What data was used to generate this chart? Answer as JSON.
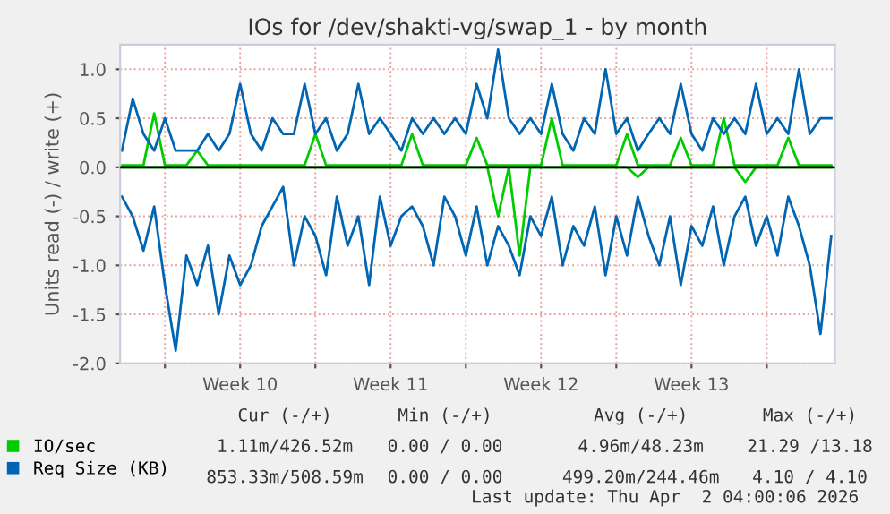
{
  "chart_data": {
    "type": "line",
    "title": "IOs for /dev/shakti-vg/swap_1 - by month",
    "ylabel": "Units read (-) / write (+)",
    "x": [
      "2026-02-28T00:00",
      "2026-02-28T12:00",
      "2026-03-01T00:00",
      "2026-03-01T12:00",
      "2026-03-02T00:00",
      "2026-03-02T12:00",
      "2026-03-03T00:00",
      "2026-03-03T12:00",
      "2026-03-04T00:00",
      "2026-03-04T12:00",
      "2026-03-05T00:00",
      "2026-03-05T12:00",
      "2026-03-06T00:00",
      "2026-03-06T12:00",
      "2026-03-07T00:00",
      "2026-03-07T12:00",
      "2026-03-08T00:00",
      "2026-03-08T12:00",
      "2026-03-09T00:00",
      "2026-03-09T12:00",
      "2026-03-10T00:00",
      "2026-03-10T12:00",
      "2026-03-11T00:00",
      "2026-03-11T12:00",
      "2026-03-12T00:00",
      "2026-03-12T12:00",
      "2026-03-13T00:00",
      "2026-03-13T12:00",
      "2026-03-14T00:00",
      "2026-03-14T12:00",
      "2026-03-15T00:00",
      "2026-03-15T12:00",
      "2026-03-16T00:00",
      "2026-03-16T12:00",
      "2026-03-17T00:00",
      "2026-03-17T12:00",
      "2026-03-18T00:00",
      "2026-03-18T12:00",
      "2026-03-19T00:00",
      "2026-03-19T12:00",
      "2026-03-20T00:00",
      "2026-03-20T12:00",
      "2026-03-21T00:00",
      "2026-03-21T12:00",
      "2026-03-22T00:00",
      "2026-03-22T12:00",
      "2026-03-23T00:00",
      "2026-03-23T12:00",
      "2026-03-24T00:00",
      "2026-03-24T12:00",
      "2026-03-25T00:00",
      "2026-03-25T12:00",
      "2026-03-26T00:00",
      "2026-03-26T12:00",
      "2026-03-27T00:00",
      "2026-03-27T12:00",
      "2026-03-28T00:00",
      "2026-03-28T12:00",
      "2026-03-29T00:00",
      "2026-03-29T12:00",
      "2026-03-30T00:00",
      "2026-03-30T12:00",
      "2026-03-31T00:00",
      "2026-03-31T12:00",
      "2026-04-01T00:00",
      "2026-04-01T12:00",
      "2026-04-02T00:00"
    ],
    "series": [
      {
        "name": "IO/sec",
        "color": "#00cc00",
        "values": [
          0.02,
          0.02,
          0.02,
          0.55,
          0.02,
          0.02,
          0.02,
          0.17,
          0.02,
          0.02,
          0.02,
          0.02,
          0.02,
          0.02,
          0.02,
          0.02,
          0.02,
          0.02,
          0.34,
          0.02,
          0.02,
          0.02,
          0.02,
          0.02,
          0.02,
          0.02,
          0.02,
          0.34,
          0.02,
          0.02,
          0.02,
          0.02,
          0.02,
          0.3,
          0.02,
          0.02,
          0.02,
          0.02,
          0.02,
          0.02,
          0.5,
          0.02,
          0.02,
          0.02,
          0.02,
          0.02,
          0.02,
          0.34,
          0.02,
          0.02,
          0.02,
          0.02,
          0.3,
          0.02,
          0.02,
          0.02,
          0.5,
          0.02,
          0.02,
          0.02,
          0.02,
          0.02,
          0.3,
          0.02,
          0.02,
          0.02,
          0.02
        ]
      },
      {
        "color": "#00cc00",
        "values": [
          0,
          0,
          0,
          0,
          0,
          0,
          0,
          0,
          0,
          0,
          0,
          0,
          0,
          0,
          0,
          0,
          0,
          0,
          0,
          0,
          0,
          0,
          0,
          0,
          0,
          0,
          0,
          0,
          0,
          0,
          0,
          0,
          0,
          0,
          0,
          -0.5,
          0,
          -0.9,
          0,
          0,
          0,
          0,
          0,
          0,
          0,
          0,
          0,
          0,
          -0.1,
          0,
          0,
          0,
          0,
          0,
          0,
          0,
          0,
          0,
          -0.15,
          0,
          0,
          0,
          0,
          0,
          0,
          0,
          0
        ]
      },
      {
        "name": "Req Size (KB)",
        "color": "#0066b3",
        "values": [
          0.17,
          0.7,
          0.34,
          0.17,
          0.5,
          0.17,
          0.17,
          0.17,
          0.34,
          0.17,
          0.34,
          0.85,
          0.34,
          0.17,
          0.5,
          0.34,
          0.34,
          0.85,
          0.34,
          0.5,
          0.17,
          0.34,
          0.85,
          0.34,
          0.5,
          0.34,
          0.17,
          0.5,
          0.34,
          0.5,
          0.34,
          0.5,
          0.34,
          0.85,
          0.5,
          1.2,
          0.5,
          0.34,
          0.5,
          0.34,
          0.85,
          0.34,
          0.17,
          0.5,
          0.34,
          1.0,
          0.34,
          0.5,
          0.17,
          0.34,
          0.5,
          0.34,
          0.85,
          0.34,
          0.17,
          0.5,
          0.34,
          0.5,
          0.34,
          0.85,
          0.34,
          0.5,
          0.34,
          1.0,
          0.34,
          0.5,
          0.5
        ]
      },
      {
        "color": "#0066b3",
        "values": [
          -0.3,
          -0.5,
          -0.85,
          -0.4,
          -1.2,
          -1.87,
          -0.9,
          -1.2,
          -0.8,
          -1.5,
          -0.9,
          -1.2,
          -1.0,
          -0.6,
          -0.4,
          -0.2,
          -1.0,
          -0.5,
          -0.7,
          -1.1,
          -0.3,
          -0.8,
          -0.5,
          -1.2,
          -0.3,
          -0.8,
          -0.5,
          -0.4,
          -0.6,
          -1.0,
          -0.3,
          -0.5,
          -0.9,
          -0.4,
          -1.0,
          -0.6,
          -0.8,
          -1.1,
          -0.5,
          -0.7,
          -0.3,
          -1.0,
          -0.6,
          -0.8,
          -0.4,
          -1.1,
          -0.5,
          -0.9,
          -0.3,
          -0.7,
          -1.0,
          -0.5,
          -1.2,
          -0.6,
          -0.8,
          -0.4,
          -1.0,
          -0.5,
          -0.3,
          -0.8,
          -0.5,
          -0.9,
          -0.3,
          -0.6,
          -1.0,
          -1.7,
          -0.7
        ]
      }
    ],
    "xlim": [
      "2026-02-27T22:00",
      "2026-04-02T04:00"
    ],
    "xticks": [
      {
        "value": "2026-03-02",
        "label": null
      },
      {
        "value": "2026-03-05T12:00",
        "label": "Week 10"
      },
      {
        "value": "2026-03-09",
        "label": null
      },
      {
        "value": "2026-03-12T12:00",
        "label": "Week 11"
      },
      {
        "value": "2026-03-16",
        "label": null
      },
      {
        "value": "2026-03-19T12:00",
        "label": "Week 12"
      },
      {
        "value": "2026-03-23",
        "label": null
      },
      {
        "value": "2026-03-26T12:00",
        "label": "Week 13"
      },
      {
        "value": "2026-03-30",
        "label": null
      }
    ],
    "ylim": [
      -2.0,
      1.25
    ],
    "yticks": [
      {
        "value": -2.0,
        "label": "-2.0"
      },
      {
        "value": -1.5,
        "label": "-1.5"
      },
      {
        "value": -1.0,
        "label": "-1.0"
      },
      {
        "value": -0.5,
        "label": "-0.5"
      },
      {
        "value": 0.0,
        "label": "0.0"
      },
      {
        "value": 0.5,
        "label": "0.5"
      },
      {
        "value": 1.0,
        "label": "1.0"
      }
    ],
    "ref_lines": [
      {
        "axis": "y",
        "value": 0,
        "color": "#000000"
      }
    ],
    "grid": true,
    "legend": "bottom left",
    "annotations": [
      "Cur (-/+)",
      "Min (-/+)",
      "Avg (-/+)",
      "Max (-/+)",
      "1.11m/426.52m",
      "0.00 / 0.00",
      "4.96m/48.23m",
      "21.29 /13.18",
      "853.33m/508.59m",
      "0.00 / 0.00",
      "499.20m/244.46m",
      "4.10 / 4.10",
      "Last update: Thu Apr  2 04:00:06 2026"
    ]
  }
}
